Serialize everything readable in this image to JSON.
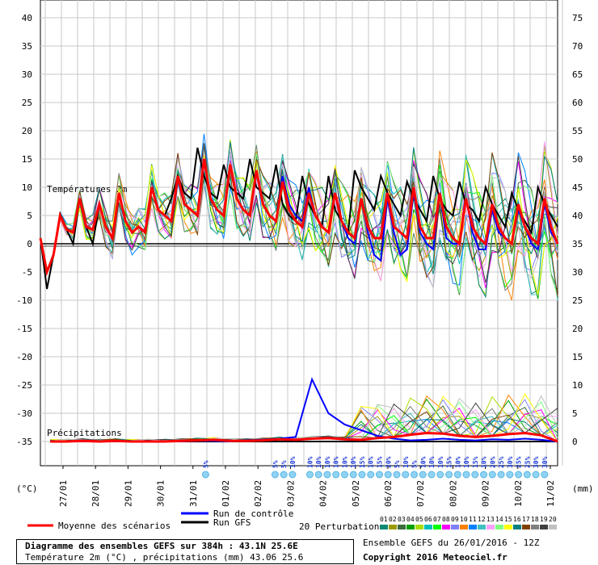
{
  "chart_data": {
    "type": "line",
    "left_axis_unit": "(°C)",
    "right_axis_unit": "(mm)",
    "left_ticks": [
      40,
      35,
      30,
      25,
      20,
      15,
      10,
      5,
      0,
      -5,
      -10,
      -15,
      -20,
      -25,
      -30,
      -35
    ],
    "right_ticks": [
      75,
      70,
      65,
      60,
      55,
      50,
      45,
      40,
      35,
      30,
      25,
      20,
      15,
      10,
      5,
      0
    ],
    "ylim_temp": [
      -35,
      40
    ],
    "date_labels": [
      "27/01",
      "28/01",
      "29/01",
      "30/01",
      "31/01",
      "01/02",
      "02/02",
      "03/02",
      "04/02",
      "05/02",
      "06/02",
      "07/02",
      "08/02",
      "09/02",
      "10/02",
      "11/02"
    ],
    "temp_section_label": "Températures 2m",
    "precip_section_label": "Précipitations",
    "snow_labels": [
      {
        "x_step": 38,
        "text": "5%"
      },
      {
        "x_step": 54,
        "text": "5%"
      },
      {
        "x_step": 56,
        "text": "5%"
      },
      {
        "x_step": 58,
        "text": "10%"
      },
      {
        "x_step": 62,
        "text": "10%"
      },
      {
        "x_step": 64,
        "text": "10%"
      },
      {
        "x_step": 66,
        "text": "10%"
      },
      {
        "x_step": 68,
        "text": "10%"
      },
      {
        "x_step": 70,
        "text": "10%"
      },
      {
        "x_step": 72,
        "text": "10%"
      },
      {
        "x_step": 74,
        "text": "15%"
      },
      {
        "x_step": 76,
        "text": "10%"
      },
      {
        "x_step": 78,
        "text": "15%"
      },
      {
        "x_step": 80,
        "text": "20%"
      },
      {
        "x_step": 82,
        "text": "5%"
      },
      {
        "x_step": 84,
        "text": "10%"
      },
      {
        "x_step": 86,
        "text": "5%"
      },
      {
        "x_step": 88,
        "text": "10%"
      },
      {
        "x_step": 90,
        "text": "10%"
      },
      {
        "x_step": 92,
        "text": "10%"
      },
      {
        "x_step": 94,
        "text": "15%"
      },
      {
        "x_step": 96,
        "text": "10%"
      },
      {
        "x_step": 98,
        "text": "10%"
      },
      {
        "x_step": 100,
        "text": "15%"
      },
      {
        "x_step": 102,
        "text": "10%"
      },
      {
        "x_step": 104,
        "text": "20%"
      },
      {
        "x_step": 106,
        "text": "25%"
      },
      {
        "x_step": 108,
        "text": "30%"
      },
      {
        "x_step": 110,
        "text": "25%"
      },
      {
        "x_step": 112,
        "text": "25%"
      },
      {
        "x_step": 114,
        "text": "30%"
      },
      {
        "x_step": 116,
        "text": "30%"
      }
    ],
    "series": [
      {
        "name": "Moyenne des scénarios",
        "role": "mean",
        "color": "#ff0000",
        "temp": [
          1,
          -5,
          -2,
          5,
          2.5,
          2,
          8,
          3,
          2.5,
          7,
          3,
          1,
          9,
          4,
          2,
          3,
          2,
          10,
          6,
          5,
          4,
          12,
          7,
          6,
          5,
          15,
          8,
          6,
          5,
          14,
          8,
          6,
          5,
          13,
          7,
          5,
          4,
          11,
          6,
          4,
          3,
          9,
          5,
          3,
          2,
          9,
          4,
          2,
          1,
          8,
          3,
          1,
          1,
          9,
          3,
          2,
          1,
          10,
          3,
          1,
          1,
          9,
          3,
          1,
          0,
          8,
          3,
          1,
          0,
          7,
          3,
          1,
          0,
          7,
          3,
          1,
          0,
          8,
          3,
          0
        ],
        "precip": [
          0,
          0,
          0.1,
          0,
          0.1,
          0,
          0,
          0,
          0.1,
          0.2,
          0.3,
          0.1,
          0.1,
          0.2,
          0.4,
          0.3,
          0.5,
          0.6,
          0.4,
          0.3,
          0.6,
          0.8,
          1.2,
          1.5,
          1.4,
          1.0,
          0.8,
          1.0,
          1.3,
          1.5,
          1.1,
          0
        ]
      },
      {
        "name": "Run de contrôle",
        "role": "control",
        "color": "#0000ff",
        "temp": [
          1,
          -5,
          -2,
          5,
          2.5,
          2,
          8,
          3,
          2.5,
          7,
          3,
          1,
          9,
          4,
          2,
          3,
          2,
          10,
          6,
          5,
          4,
          12,
          7,
          6,
          5,
          15,
          8,
          6,
          5,
          14,
          8,
          6,
          5,
          13,
          7,
          5,
          4,
          12,
          7,
          5,
          4,
          10,
          5,
          3,
          2,
          9,
          4,
          1,
          0,
          8,
          2,
          -2,
          -3,
          8,
          2,
          -2,
          -1,
          9,
          2,
          0,
          -1,
          9,
          1,
          0,
          0,
          8,
          2,
          -1,
          -1,
          6,
          2,
          1,
          0,
          6,
          3,
          0,
          -1,
          7,
          2,
          0
        ],
        "precip": [
          0,
          0,
          0,
          0,
          0,
          0,
          0,
          0,
          0,
          0.1,
          0.1,
          0,
          0.2,
          0.3,
          0.5,
          0.8,
          11,
          5,
          3,
          2,
          1,
          0.5,
          0.2,
          0.3,
          0.5,
          0.3,
          0.2,
          0.4,
          0.3,
          0.5,
          0.3,
          0
        ]
      },
      {
        "name": "Run GFS",
        "role": "gfs",
        "color": "#000000",
        "temp": [
          1,
          -8,
          -2,
          5,
          2.5,
          0,
          8,
          3,
          0,
          7,
          3,
          1,
          9,
          4,
          2,
          3,
          2,
          10,
          6,
          5,
          8,
          12,
          9,
          8,
          17,
          12,
          9,
          8,
          14,
          10,
          9,
          8,
          15,
          10,
          9,
          8,
          14,
          7,
          5,
          4,
          12,
          7,
          5,
          3,
          12,
          6,
          4,
          2,
          13,
          10,
          8,
          6,
          12,
          9,
          7,
          5,
          11,
          8,
          6,
          4,
          12,
          8,
          6,
          5,
          11,
          7,
          6,
          4,
          10,
          7,
          5,
          3,
          9,
          6,
          4,
          2,
          10,
          7,
          5,
          3
        ],
        "precip": [
          0,
          0,
          0,
          0,
          0,
          0,
          0,
          0,
          0,
          0,
          0,
          0,
          0,
          0,
          0,
          0,
          0,
          0,
          0,
          0,
          0,
          0,
          0,
          0,
          0,
          0,
          0,
          0,
          0,
          0,
          0,
          0
        ]
      }
    ]
  },
  "legend": {
    "mean_label": "Moyenne des scénarios",
    "control_label": "Run de contrôle",
    "gfs_label": "Run GFS",
    "perturb_label": "20 Perturbations",
    "perturb_numbers": [
      "01",
      "02",
      "03",
      "04",
      "05",
      "06",
      "07",
      "08",
      "09",
      "10",
      "11",
      "12",
      "13",
      "14",
      "15",
      "16",
      "17",
      "18",
      "19",
      "20"
    ],
    "perturb_colors": [
      "#0b8a73",
      "#9b9b00",
      "#3d6b3d",
      "#00a000",
      "#aadd00",
      "#00c0c0",
      "#00ff00",
      "#ff00ff",
      "#8080ff",
      "#ff8000",
      "#0080ff",
      "#40c0c0",
      "#ffa0ff",
      "#80ff80",
      "#ffff00",
      "#008080",
      "#804000",
      "#808080",
      "#404040",
      "#c0c0c0"
    ]
  },
  "info": {
    "title": "Diagramme des ensembles GEFS sur 384h : 43.1N 25.6E",
    "subtitle": "Température 2m (°C) , précipitations (mm) 43.06 25.6",
    "ensemble_run": "Ensemble GEFS du 26/01/2016 - 12Z",
    "copyright": "Copyright 2016 Meteociel.fr"
  }
}
